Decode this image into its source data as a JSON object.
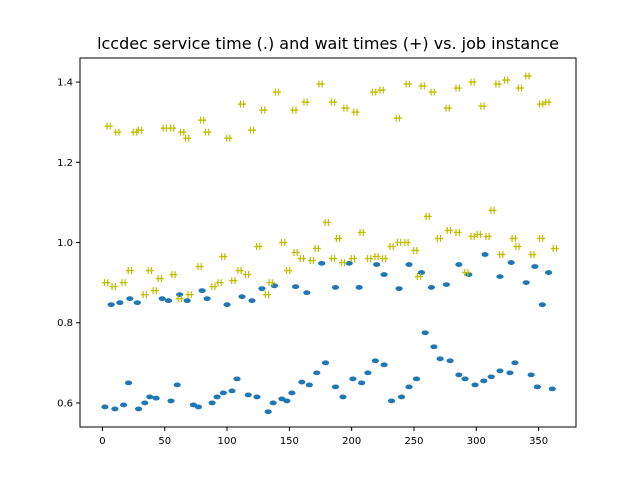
{
  "chart_data": {
    "type": "scatter",
    "title": "lccdec service time (.) and wait times (+) vs. job instance",
    "xlabel": "",
    "ylabel": "",
    "xlim": [
      -18,
      380
    ],
    "ylim": [
      0.54,
      1.46
    ],
    "x_ticks": [
      0,
      50,
      100,
      150,
      200,
      250,
      300,
      350
    ],
    "y_ticks": [
      0.6,
      0.8,
      1.0,
      1.2,
      1.4
    ],
    "x_tick_labels": [
      "0",
      "50",
      "100",
      "150",
      "200",
      "250",
      "300",
      "350"
    ],
    "y_tick_labels": [
      "0.6",
      "0.8",
      "1.0",
      "1.2",
      "1.4"
    ],
    "grid": false,
    "series": [
      {
        "marker": "dot",
        "color": "#1f77b4",
        "points": [
          [
            2,
            0.59
          ],
          [
            10,
            0.585
          ],
          [
            17,
            0.595
          ],
          [
            21,
            0.65
          ],
          [
            29,
            0.585
          ],
          [
            34,
            0.6
          ],
          [
            38,
            0.615
          ],
          [
            43,
            0.612
          ],
          [
            55,
            0.605
          ],
          [
            60,
            0.645
          ],
          [
            73,
            0.595
          ],
          [
            77,
            0.59
          ],
          [
            88,
            0.6
          ],
          [
            92,
            0.615
          ],
          [
            97,
            0.625
          ],
          [
            104,
            0.63
          ],
          [
            108,
            0.66
          ],
          [
            117,
            0.62
          ],
          [
            124,
            0.615
          ],
          [
            133,
            0.578
          ],
          [
            137,
            0.6
          ],
          [
            144,
            0.61
          ],
          [
            148,
            0.605
          ],
          [
            152,
            0.625
          ],
          [
            160,
            0.652
          ],
          [
            166,
            0.645
          ],
          [
            172,
            0.675
          ],
          [
            179,
            0.7
          ],
          [
            187,
            0.64
          ],
          [
            193,
            0.615
          ],
          [
            201,
            0.66
          ],
          [
            208,
            0.65
          ],
          [
            213,
            0.675
          ],
          [
            219,
            0.705
          ],
          [
            226,
            0.695
          ],
          [
            232,
            0.605
          ],
          [
            240,
            0.615
          ],
          [
            246,
            0.64
          ],
          [
            252,
            0.66
          ],
          [
            259,
            0.775
          ],
          [
            266,
            0.74
          ],
          [
            271,
            0.71
          ],
          [
            279,
            0.705
          ],
          [
            286,
            0.67
          ],
          [
            291,
            0.66
          ],
          [
            299,
            0.645
          ],
          [
            306,
            0.655
          ],
          [
            312,
            0.665
          ],
          [
            319,
            0.68
          ],
          [
            327,
            0.675
          ],
          [
            331,
            0.7
          ],
          [
            344,
            0.67
          ],
          [
            349,
            0.64
          ],
          [
            361,
            0.635
          ],
          [
            7,
            0.845
          ],
          [
            14,
            0.85
          ],
          [
            22,
            0.86
          ],
          [
            28,
            0.85
          ],
          [
            48,
            0.86
          ],
          [
            53,
            0.855
          ],
          [
            62,
            0.87
          ],
          [
            68,
            0.855
          ],
          [
            80,
            0.88
          ],
          [
            84,
            0.86
          ],
          [
            100,
            0.845
          ],
          [
            112,
            0.865
          ],
          [
            120,
            0.855
          ],
          [
            128,
            0.885
          ],
          [
            138,
            0.892
          ],
          [
            155,
            0.89
          ],
          [
            164,
            0.875
          ],
          [
            176,
            0.948
          ],
          [
            187,
            0.888
          ],
          [
            198,
            0.948
          ],
          [
            206,
            0.888
          ],
          [
            220,
            0.945
          ],
          [
            226,
            0.92
          ],
          [
            238,
            0.885
          ],
          [
            246,
            0.945
          ],
          [
            256,
            0.925
          ],
          [
            264,
            0.888
          ],
          [
            276,
            0.895
          ],
          [
            286,
            0.945
          ],
          [
            294,
            0.92
          ],
          [
            307,
            0.97
          ],
          [
            319,
            0.915
          ],
          [
            328,
            0.95
          ],
          [
            340,
            0.9
          ],
          [
            347,
            0.94
          ],
          [
            353,
            0.845
          ],
          [
            358,
            0.925
          ]
        ]
      },
      {
        "marker": "plus",
        "color": "#bfbf00",
        "points": [
          [
            3,
            0.9
          ],
          [
            9,
            0.89
          ],
          [
            17,
            0.9
          ],
          [
            22,
            0.93
          ],
          [
            34,
            0.87
          ],
          [
            38,
            0.93
          ],
          [
            42,
            0.88
          ],
          [
            46,
            0.91
          ],
          [
            57,
            0.92
          ],
          [
            62,
            0.86
          ],
          [
            70,
            0.87
          ],
          [
            78,
            0.94
          ],
          [
            89,
            0.89
          ],
          [
            94,
            0.9
          ],
          [
            97,
            0.965
          ],
          [
            105,
            0.905
          ],
          [
            110,
            0.93
          ],
          [
            116,
            0.92
          ],
          [
            125,
            0.99
          ],
          [
            132,
            0.87
          ],
          [
            135,
            0.9
          ],
          [
            145,
            1.0
          ],
          [
            149,
            0.93
          ],
          [
            155,
            0.975
          ],
          [
            160,
            0.96
          ],
          [
            168,
            0.955
          ],
          [
            172,
            0.985
          ],
          [
            180,
            1.05
          ],
          [
            185,
            0.96
          ],
          [
            189,
            1.01
          ],
          [
            193,
            0.95
          ],
          [
            201,
            0.96
          ],
          [
            208,
            1.025
          ],
          [
            214,
            0.96
          ],
          [
            220,
            0.965
          ],
          [
            226,
            0.96
          ],
          [
            232,
            0.99
          ],
          [
            238,
            1.0
          ],
          [
            244,
            1.0
          ],
          [
            251,
            0.98
          ],
          [
            254,
            0.915
          ],
          [
            261,
            1.065
          ],
          [
            270,
            1.01
          ],
          [
            278,
            1.03
          ],
          [
            285,
            1.025
          ],
          [
            292,
            0.925
          ],
          [
            297,
            1.015
          ],
          [
            302,
            1.02
          ],
          [
            309,
            1.015
          ],
          [
            313,
            1.08
          ],
          [
            320,
            0.97
          ],
          [
            330,
            1.01
          ],
          [
            333,
            0.99
          ],
          [
            345,
            0.97
          ],
          [
            352,
            1.01
          ],
          [
            363,
            0.985
          ],
          [
            5,
            1.29
          ],
          [
            12,
            1.275
          ],
          [
            26,
            1.275
          ],
          [
            30,
            1.28
          ],
          [
            50,
            1.285
          ],
          [
            56,
            1.285
          ],
          [
            64,
            1.275
          ],
          [
            68,
            1.26
          ],
          [
            80,
            1.305
          ],
          [
            84,
            1.275
          ],
          [
            101,
            1.26
          ],
          [
            112,
            1.345
          ],
          [
            120,
            1.28
          ],
          [
            129,
            1.33
          ],
          [
            140,
            1.375
          ],
          [
            154,
            1.33
          ],
          [
            163,
            1.35
          ],
          [
            175,
            1.395
          ],
          [
            185,
            1.35
          ],
          [
            195,
            1.335
          ],
          [
            203,
            1.325
          ],
          [
            218,
            1.375
          ],
          [
            224,
            1.38
          ],
          [
            237,
            1.31
          ],
          [
            245,
            1.395
          ],
          [
            257,
            1.39
          ],
          [
            265,
            1.375
          ],
          [
            277,
            1.335
          ],
          [
            285,
            1.385
          ],
          [
            297,
            1.4
          ],
          [
            305,
            1.34
          ],
          [
            317,
            1.395
          ],
          [
            324,
            1.405
          ],
          [
            335,
            1.385
          ],
          [
            341,
            1.415
          ],
          [
            352,
            1.345
          ],
          [
            357,
            1.35
          ]
        ]
      }
    ]
  }
}
